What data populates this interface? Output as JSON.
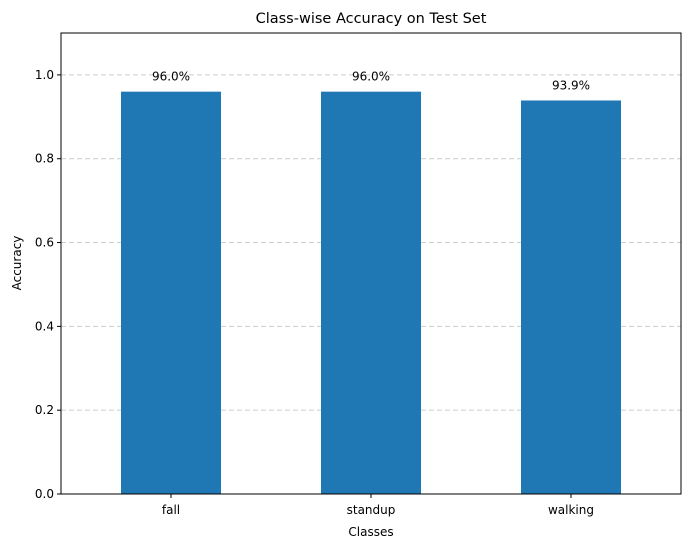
{
  "chart_data": {
    "type": "bar",
    "title": "Class-wise Accuracy on Test Set",
    "xlabel": "Classes",
    "ylabel": "Accuracy",
    "categories": [
      "fall",
      "standup",
      "walking"
    ],
    "values": [
      0.96,
      0.96,
      0.939
    ],
    "data_labels": [
      "96.0%",
      "96.0%",
      "93.9%"
    ],
    "ylim": [
      0,
      1.1
    ],
    "yticks": [
      0.0,
      0.2,
      0.4,
      0.6,
      0.8,
      1.0
    ],
    "ytick_labels": [
      "0.0",
      "0.2",
      "0.4",
      "0.6",
      "0.8",
      "1.0"
    ],
    "grid": "y-dashed",
    "bar_color": "#1f77b4",
    "grid_color": "#cccccc"
  }
}
